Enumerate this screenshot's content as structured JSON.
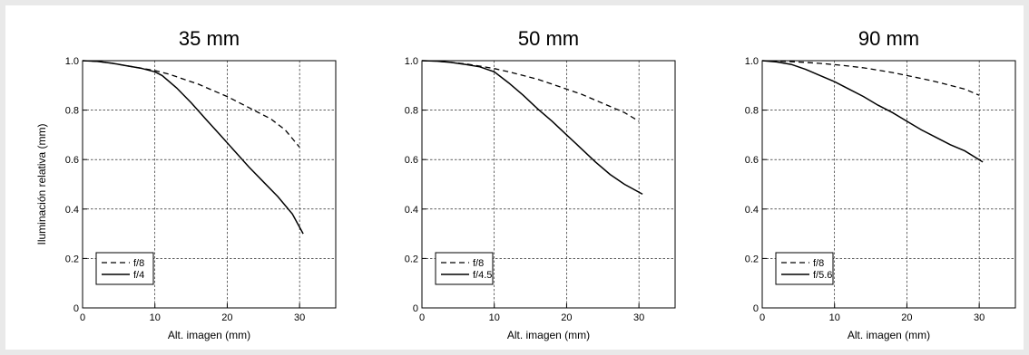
{
  "chart_data": [
    {
      "type": "line",
      "title": "35 mm",
      "xlabel": "Alt. imagen (mm)",
      "ylabel": "Iluminación relativa (mm)",
      "xlim": [
        0,
        35
      ],
      "ylim": [
        0,
        1.0
      ],
      "xticks": [
        0,
        10,
        20,
        30
      ],
      "yticks": [
        0,
        0.2,
        0.4,
        0.6,
        0.8,
        1.0
      ],
      "ytick_labels": [
        "0",
        "0.2",
        "0.4",
        "0.6",
        "0.8",
        "1.0"
      ],
      "grid": true,
      "legend_position": "bottom-left",
      "series": [
        {
          "name": "f/8",
          "dash": "dashed",
          "x": [
            0,
            2,
            4,
            6,
            8,
            10,
            12,
            14,
            16,
            18,
            20,
            22,
            24,
            26,
            28,
            30
          ],
          "y": [
            1.0,
            0.997,
            0.99,
            0.98,
            0.97,
            0.96,
            0.945,
            0.925,
            0.905,
            0.88,
            0.855,
            0.825,
            0.795,
            0.765,
            0.72,
            0.65
          ]
        },
        {
          "name": "f/4",
          "dash": "solid",
          "x": [
            0,
            2,
            4,
            6,
            8,
            10,
            11,
            13,
            15,
            17,
            19,
            21,
            23,
            25,
            27,
            29,
            30.5
          ],
          "y": [
            1.0,
            0.997,
            0.99,
            0.98,
            0.97,
            0.955,
            0.94,
            0.89,
            0.83,
            0.765,
            0.7,
            0.635,
            0.57,
            0.51,
            0.45,
            0.38,
            0.3
          ]
        }
      ]
    },
    {
      "type": "line",
      "title": "50 mm",
      "xlabel": "Alt. imagen (mm)",
      "ylabel": "",
      "xlim": [
        0,
        35
      ],
      "ylim": [
        0,
        1.0
      ],
      "xticks": [
        0,
        10,
        20,
        30
      ],
      "yticks": [
        0,
        0.2,
        0.4,
        0.6,
        0.8,
        1.0
      ],
      "ytick_labels": [
        "0",
        "0.2",
        "0.4",
        "0.6",
        "0.8",
        "1.0"
      ],
      "grid": true,
      "legend_position": "bottom-left",
      "series": [
        {
          "name": "f/8",
          "dash": "dashed",
          "x": [
            0,
            2,
            4,
            6,
            8,
            10,
            12,
            14,
            16,
            18,
            20,
            22,
            24,
            26,
            28,
            30
          ],
          "y": [
            1.0,
            0.998,
            0.993,
            0.987,
            0.978,
            0.968,
            0.955,
            0.94,
            0.925,
            0.905,
            0.885,
            0.865,
            0.84,
            0.815,
            0.79,
            0.755
          ]
        },
        {
          "name": "f/4.5",
          "dash": "solid",
          "x": [
            0,
            2,
            4,
            6,
            8,
            10,
            12,
            14,
            16,
            18,
            20,
            22,
            24,
            26,
            28,
            30.5
          ],
          "y": [
            1.0,
            0.998,
            0.993,
            0.985,
            0.975,
            0.955,
            0.91,
            0.86,
            0.805,
            0.755,
            0.7,
            0.645,
            0.59,
            0.54,
            0.5,
            0.46
          ]
        }
      ]
    },
    {
      "type": "line",
      "title": "90 mm",
      "xlabel": "Alt. imagen (mm)",
      "ylabel": "",
      "xlim": [
        0,
        35
      ],
      "ylim": [
        0,
        1.0
      ],
      "xticks": [
        0,
        10,
        20,
        30
      ],
      "yticks": [
        0,
        0.2,
        0.4,
        0.6,
        0.8,
        1.0
      ],
      "ytick_labels": [
        "0",
        "0.2",
        "0.4",
        "0.6",
        "0.8",
        "1.0"
      ],
      "grid": true,
      "legend_position": "bottom-left",
      "series": [
        {
          "name": "f/8",
          "dash": "dashed",
          "x": [
            0,
            2,
            4,
            6,
            8,
            10,
            12,
            14,
            16,
            18,
            20,
            22,
            24,
            26,
            28,
            30
          ],
          "y": [
            1.0,
            0.999,
            0.996,
            0.993,
            0.989,
            0.984,
            0.978,
            0.971,
            0.962,
            0.952,
            0.94,
            0.928,
            0.915,
            0.9,
            0.885,
            0.86
          ]
        },
        {
          "name": "f/5.6",
          "dash": "solid",
          "x": [
            0,
            2,
            4,
            6,
            8,
            10,
            12,
            14,
            16,
            18,
            20,
            22,
            24,
            26,
            28,
            30.5
          ],
          "y": [
            1.0,
            0.995,
            0.985,
            0.965,
            0.94,
            0.915,
            0.885,
            0.855,
            0.82,
            0.79,
            0.755,
            0.72,
            0.69,
            0.66,
            0.635,
            0.59
          ]
        }
      ]
    }
  ]
}
